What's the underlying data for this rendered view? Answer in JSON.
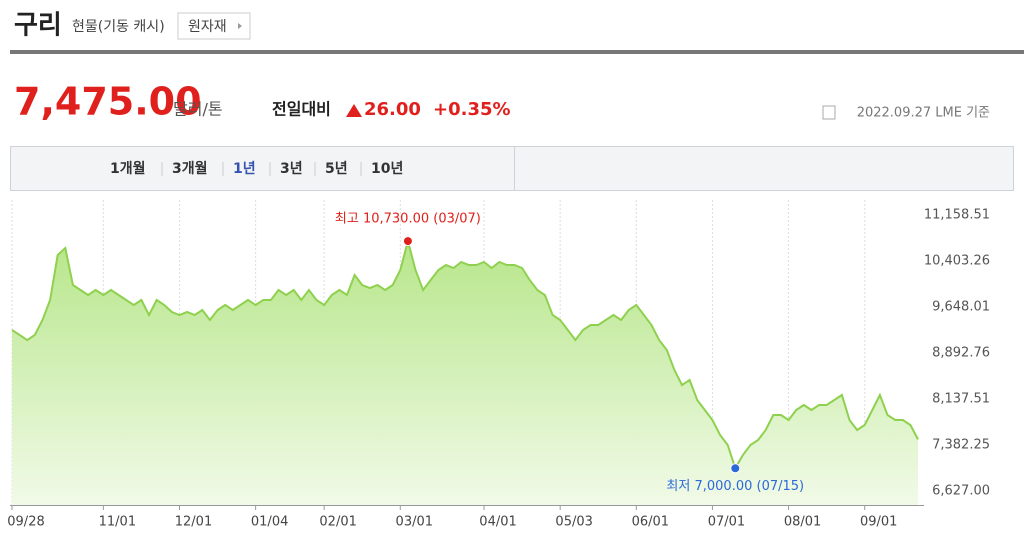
{
  "header": {
    "title": "구리",
    "subtitle": "현물(기동 캐시)",
    "button": "원자재"
  },
  "quote": {
    "price": "7,475.00",
    "unit": "달러/톤",
    "change_label": "전일대비",
    "change": "26.00",
    "change_pct": "+0.35%",
    "date": "2022.09.27 LME 기준"
  },
  "tabs": {
    "items": [
      "1개월",
      "3개월",
      "1년",
      "3년",
      "5년",
      "10년"
    ],
    "selected": 2
  },
  "chart_data": {
    "type": "area",
    "color": "#8fd14f",
    "categories": [
      "09/28",
      null,
      null,
      null,
      null,
      null,
      null,
      null,
      null,
      null,
      null,
      null,
      "11/01",
      null,
      null,
      null,
      null,
      null,
      null,
      null,
      null,
      null,
      "12/01",
      null,
      null,
      null,
      null,
      null,
      null,
      null,
      null,
      null,
      "01/04",
      null,
      null,
      null,
      null,
      null,
      null,
      null,
      null,
      "02/01",
      null,
      null,
      null,
      null,
      null,
      null,
      null,
      null,
      null,
      "03/01",
      null,
      null,
      null,
      null,
      null,
      null,
      null,
      null,
      null,
      null,
      "04/01",
      null,
      null,
      null,
      null,
      null,
      null,
      null,
      null,
      null,
      "05/03",
      null,
      null,
      null,
      null,
      null,
      null,
      null,
      null,
      null,
      "06/01",
      null,
      null,
      null,
      null,
      null,
      null,
      null,
      null,
      null,
      "07/01",
      null,
      null,
      null,
      null,
      null,
      null,
      null,
      null,
      null,
      "08/01",
      null,
      null,
      null,
      null,
      null,
      null,
      null,
      null,
      null,
      "09/01",
      null,
      null,
      null,
      null,
      null,
      null,
      null
    ],
    "values": [
      9270,
      9190,
      9105,
      9190,
      9435,
      9763,
      10502,
      10617,
      10010,
      9927,
      9845,
      9927,
      9845,
      9927,
      9845,
      9763,
      9681,
      9763,
      9517,
      9763,
      9681,
      9566,
      9517,
      9566,
      9517,
      9599,
      9435,
      9599,
      9681,
      9599,
      9681,
      9763,
      9681,
      9763,
      9763,
      9927,
      9845,
      9927,
      9763,
      9927,
      9763,
      9681,
      9845,
      9927,
      9845,
      10174,
      10010,
      9960,
      10010,
      9927,
      10010,
      10256,
      10730,
      10256,
      9927,
      10092,
      10256,
      10338,
      10289,
      10387,
      10338,
      10338,
      10387,
      10289,
      10387,
      10338,
      10338,
      10289,
      10092,
      9927,
      9845,
      9517,
      9435,
      9270,
      9106,
      9270,
      9353,
      9353,
      9435,
      9517,
      9435,
      9599,
      9681,
      9517,
      9353,
      9106,
      8942,
      8614,
      8368,
      8450,
      8121,
      7957,
      7793,
      7547,
      7382,
      7000,
      7218,
      7382,
      7464,
      7629,
      7875,
      7875,
      7793,
      7957,
      8039,
      7957,
      8039,
      8039,
      8121,
      8203,
      7793,
      7629,
      7711,
      7957,
      8203,
      7875,
      7793,
      7793,
      7711,
      7475
    ],
    "ylim": [
      6627,
      11158.51
    ],
    "yticks": [
      {
        "value": 6627,
        "label": "6,627.00"
      },
      {
        "value": 7382.25,
        "label": "7,382.25"
      },
      {
        "value": 8137.51,
        "label": "8,137.51"
      },
      {
        "value": 8892.76,
        "label": "8,892.76"
      },
      {
        "value": 9648.01,
        "label": "9,648.01"
      },
      {
        "value": 10403.26,
        "label": "10,403.26"
      },
      {
        "value": 11158.51,
        "label": "11,158.51"
      }
    ],
    "grid": true,
    "annotations": [
      {
        "text": "최고 10,730.00 (03/07)",
        "color": "#e0201c"
      },
      {
        "text": "최저 7,000.00 (07/15)",
        "color": "#2b6ad8"
      }
    ]
  }
}
